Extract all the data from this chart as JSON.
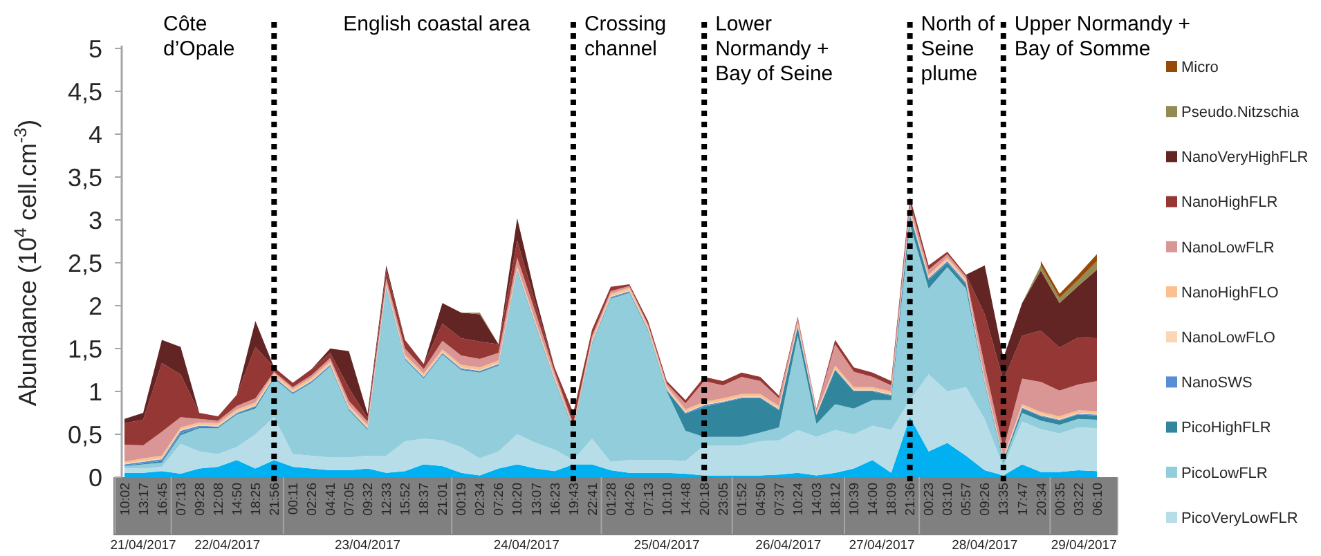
{
  "chart_data": {
    "type": "area",
    "stacked": true,
    "ylabel": "Abundance (10$^{4}$ cell.cm$^{-3}$)",
    "legend": "right",
    "ylim": [
      0,
      5
    ],
    "yticks": [
      0,
      {
        "value": 0.5,
        "label": "0,5"
      },
      1,
      {
        "value": 1.5,
        "label": "1,5"
      },
      2,
      {
        "value": 2.5,
        "label": "2,5"
      },
      3,
      {
        "value": 3.5,
        "label": "3,5"
      },
      4,
      {
        "value": 4.5,
        "label": "4,5"
      },
      5
    ],
    "categories": [
      "10:02",
      "13:17",
      "16:45",
      "07:13",
      "09:28",
      "12:08",
      "14:50",
      "18:25",
      "21:56",
      "00:11",
      "02:26",
      "04:41",
      "07:05",
      "09:32",
      "12:33",
      "15:52",
      "18:37",
      "21:01",
      "00:19",
      "02:34",
      "07:26",
      "10:20",
      "13:07",
      "16:23",
      "19:43",
      "22:41",
      "01:28",
      "04:26",
      "07:13",
      "10:10",
      "14:48",
      "20:18",
      "23:05",
      "01:52",
      "04:50",
      "07:37",
      "10:24",
      "14:03",
      "18:12",
      "10:39",
      "14:00",
      "18:09",
      "21:36",
      "00:23",
      "03:10",
      "05:57",
      "09:26",
      "13:35",
      "17:47",
      "20:34",
      "00:35",
      "03:22",
      "06:10"
    ],
    "series": [
      {
        "color": "#00b0f0",
        "values": [
          0.05,
          0.05,
          0.07,
          0.04,
          0.1,
          0.12,
          0.2,
          0.1,
          0.2,
          0.12,
          0.1,
          0.08,
          0.08,
          0.1,
          0.05,
          0.07,
          0.15,
          0.13,
          0.05,
          0.02,
          0.1,
          0.15,
          0.1,
          0.07,
          0.15,
          0.15,
          0.08,
          0.05,
          0.05,
          0.05,
          0.04,
          0.02,
          0.02,
          0.02,
          0.02,
          0.03,
          0.05,
          0.02,
          0.05,
          0.1,
          0.2,
          0.05,
          0.7,
          0.3,
          0.4,
          0.25,
          0.08,
          0.02,
          0.15,
          0.06,
          0.06,
          0.08,
          0.07
        ]
      },
      {
        "name": "PicoVeryLowFLR",
        "color": "#b7dde8",
        "values": [
          0.05,
          0.05,
          0.05,
          0.35,
          0.2,
          0.15,
          0.15,
          0.4,
          0.5,
          0.15,
          0.15,
          0.15,
          0.15,
          0.15,
          0.2,
          0.35,
          0.3,
          0.3,
          0.3,
          0.2,
          0.2,
          0.35,
          0.3,
          0.25,
          0.05,
          0.3,
          0.1,
          0.15,
          0.15,
          0.15,
          0.15,
          0.35,
          0.35,
          0.35,
          0.4,
          0.4,
          0.5,
          0.45,
          0.5,
          0.4,
          0.4,
          0.5,
          0.2,
          0.9,
          0.6,
          0.8,
          0.6,
          0.1,
          0.5,
          0.5,
          0.45,
          0.5,
          0.5
        ]
      },
      {
        "name": "PicoLowFLR",
        "color": "#92cddc",
        "values": [
          0.03,
          0.05,
          0.05,
          0.1,
          0.27,
          0.3,
          0.38,
          0.3,
          0.45,
          0.7,
          0.85,
          1.06,
          0.55,
          0.3,
          1.95,
          0.95,
          0.7,
          1.0,
          0.9,
          1.0,
          1.0,
          1.9,
          1.35,
          0.8,
          0.35,
          1.1,
          1.9,
          1.95,
          1.5,
          0.8,
          0.35,
          0.1,
          0.1,
          0.1,
          0.1,
          0.15,
          1.1,
          0.15,
          0.3,
          0.3,
          0.3,
          0.35,
          2.05,
          1.0,
          1.45,
          1.15,
          0.4,
          0.05,
          0.1,
          0.1,
          0.1,
          0.1,
          0.1
        ]
      },
      {
        "name": "PicoHighFLR",
        "color": "#31859c",
        "values": [
          0.01,
          0.01,
          0.02,
          0.02,
          0.01,
          0.01,
          0.01,
          0.02,
          0.01,
          0.01,
          0.01,
          0.01,
          0.01,
          0.01,
          0.01,
          0.01,
          0.01,
          0.01,
          0.01,
          0.01,
          0.01,
          0.01,
          0.01,
          0.01,
          0.01,
          0.01,
          0.01,
          0.01,
          0.01,
          0.01,
          0.2,
          0.35,
          0.4,
          0.45,
          0.4,
          0.2,
          0.1,
          0.1,
          0.4,
          0.2,
          0.1,
          0.05,
          0.1,
          0.1,
          0.05,
          0.05,
          0.02,
          0.02,
          0.05,
          0.05,
          0.05,
          0.05,
          0.05
        ]
      },
      {
        "name": "NanoSWS",
        "color": "#558ed5",
        "values": [
          0.01,
          0.02,
          0.02,
          0.03,
          0.02,
          0.01,
          0.01,
          0.01,
          0.01,
          0.01,
          0.01,
          0.01,
          0.01,
          0.01,
          0.01,
          0.01,
          0.01,
          0.01,
          0.01,
          0.01,
          0.01,
          0.01,
          0.01,
          0.01,
          0.01,
          0.01,
          0.01,
          0.01,
          0.01,
          0.01,
          0.01,
          0.02,
          0.01,
          0.01,
          0.01,
          0.01,
          0.01,
          0.01,
          0.01,
          0.01,
          0.01,
          0.01,
          0.02,
          0.02,
          0.02,
          0.02,
          0.01,
          0.01,
          0.01,
          0.01,
          0.01,
          0.01,
          0.01
        ]
      },
      {
        "name": "NanoLowFLO",
        "color": "#fcd5b5",
        "values": [
          0.01,
          0.01,
          0.01,
          0.01,
          0.01,
          0.01,
          0.01,
          0.01,
          0.01,
          0.01,
          0.01,
          0.01,
          0.01,
          0.01,
          0.01,
          0.01,
          0.01,
          0.01,
          0.01,
          0.01,
          0.01,
          0.01,
          0.01,
          0.01,
          0,
          0.01,
          0.01,
          0.01,
          0.01,
          0.01,
          0.01,
          0.01,
          0.01,
          0.01,
          0.01,
          0.01,
          0.01,
          0.01,
          0.01,
          0.01,
          0.01,
          0.01,
          0.02,
          0.01,
          0.01,
          0.01,
          0.01,
          0.01,
          0.01,
          0.01,
          0.01,
          0.01,
          0.01
        ]
      },
      {
        "name": "NanoHighFLO",
        "color": "#fac090",
        "values": [
          0.02,
          0.03,
          0.03,
          0.03,
          0.03,
          0.03,
          0.03,
          0.03,
          0.03,
          0.03,
          0.03,
          0.03,
          0.03,
          0.03,
          0.03,
          0.03,
          0.03,
          0.03,
          0.03,
          0.03,
          0.03,
          0.03,
          0.03,
          0.03,
          0.02,
          0.03,
          0.03,
          0.03,
          0.03,
          0.03,
          0.03,
          0.03,
          0.03,
          0.03,
          0.03,
          0.03,
          0.03,
          0.02,
          0.03,
          0.03,
          0.03,
          0.03,
          0.03,
          0.03,
          0.03,
          0.03,
          0.03,
          0.02,
          0.03,
          0.03,
          0.03,
          0.03,
          0.03
        ]
      },
      {
        "name": "NanoLowFLR",
        "color": "#d99694",
        "values": [
          0.2,
          0.15,
          0.28,
          0.12,
          0.04,
          0.03,
          0.04,
          0.05,
          0.02,
          0.02,
          0.03,
          0.04,
          0.05,
          0.04,
          0.06,
          0.07,
          0.05,
          0.1,
          0.11,
          0.1,
          0.09,
          0.1,
          0.1,
          0.05,
          0.03,
          0.04,
          0.03,
          0.02,
          0.02,
          0.03,
          0.07,
          0.24,
          0.15,
          0.2,
          0.15,
          0.09,
          0.05,
          0.03,
          0.25,
          0.18,
          0.12,
          0.07,
          0.08,
          0.06,
          0.04,
          0.03,
          0.15,
          0.1,
          0.3,
          0.35,
          0.3,
          0.3,
          0.35
        ]
      },
      {
        "name": "NanoHighFLR",
        "color": "#953735",
        "values": [
          0.25,
          0.3,
          0.8,
          0.5,
          0.07,
          0.05,
          0.13,
          0.6,
          0.05,
          0.05,
          0.07,
          0.06,
          0.15,
          0.04,
          0.1,
          0.1,
          0.06,
          0.2,
          0.2,
          0.2,
          0.1,
          0.2,
          0.1,
          0.05,
          0.13,
          0.07,
          0.05,
          0.02,
          0.04,
          0.03,
          0.04,
          0.05,
          0.05,
          0.05,
          0.05,
          0.03,
          0.02,
          0.01,
          0.05,
          0.05,
          0.05,
          0.05,
          0.07,
          0.05,
          0.03,
          0.02,
          0.6,
          0.8,
          0.5,
          0.6,
          0.5,
          0.55,
          0.5
        ]
      },
      {
        "name": "NanoVeryHighFLR",
        "color": "#632523",
        "values": [
          0.05,
          0.08,
          0.27,
          0.32,
          0,
          0,
          0,
          0.3,
          0,
          0,
          0,
          0.05,
          0.43,
          0.05,
          0.05,
          0,
          0,
          0.24,
          0.3,
          0.32,
          0,
          0.26,
          0.08,
          0,
          0,
          0,
          0,
          0,
          0,
          0,
          0,
          0,
          0,
          0,
          0,
          0,
          0,
          0,
          0,
          0,
          0,
          0,
          0,
          0,
          0,
          0,
          0.57,
          0.26,
          0.38,
          0.7,
          0.52,
          0.6,
          0.8
        ]
      },
      {
        "name": "Pseudo.Nitzschia",
        "color": "#948a54",
        "values": [
          0,
          0,
          0,
          0,
          0,
          0,
          0,
          0,
          0,
          0,
          0,
          0,
          0,
          0,
          0,
          0,
          0,
          0,
          0,
          0.02,
          0,
          0,
          0,
          0,
          0,
          0,
          0,
          0,
          0,
          0,
          0,
          0,
          0,
          0,
          0,
          0,
          0,
          0,
          0,
          0,
          0,
          0,
          0,
          0,
          0,
          0,
          0,
          0,
          0,
          0.06,
          0.06,
          0.07,
          0.1
        ]
      },
      {
        "name": "Micro",
        "color": "#984807",
        "values": [
          null,
          null,
          null,
          null,
          null,
          null,
          null,
          null,
          null,
          null,
          null,
          null,
          null,
          null,
          null,
          null,
          null,
          null,
          null,
          null,
          null,
          null,
          null,
          null,
          null,
          null,
          null,
          null,
          null,
          null,
          null,
          null,
          null,
          null,
          null,
          null,
          null,
          null,
          null,
          null,
          null,
          null,
          null,
          null,
          null,
          null,
          null,
          null,
          null,
          0.05,
          0.05,
          0.06,
          0.08
        ]
      }
    ],
    "ref_lines": [
      {
        "axis": "x",
        "value": "21:56",
        "line_style": "dotted",
        "color": "#000000"
      },
      {
        "axis": "x",
        "value": "19:43",
        "line_style": "dotted",
        "color": "#000000"
      },
      {
        "axis": "x",
        "value": "20:18",
        "line_style": "dotted",
        "color": "#000000"
      },
      {
        "axis": "x",
        "value": "21:36",
        "line_style": "dotted",
        "color": "#000000"
      },
      {
        "axis": "x",
        "value": "13:35",
        "line_style": "dotted",
        "color": "#000000"
      }
    ],
    "annotations": [
      "Côte\nd’Opale",
      "English coastal area",
      "Crossing\nchannel",
      "Lower\nNormandy +\nBay of Seine",
      "North of\nSeine\nplume",
      "Upper Normandy +\nBay of Somme",
      "21/04/2017",
      "22/04/2017",
      "23/04/2017",
      "24/04/2017",
      "25/04/2017",
      "26/04/2017",
      "27/04/2017",
      "28/04/2017",
      "29/04/2017"
    ]
  }
}
